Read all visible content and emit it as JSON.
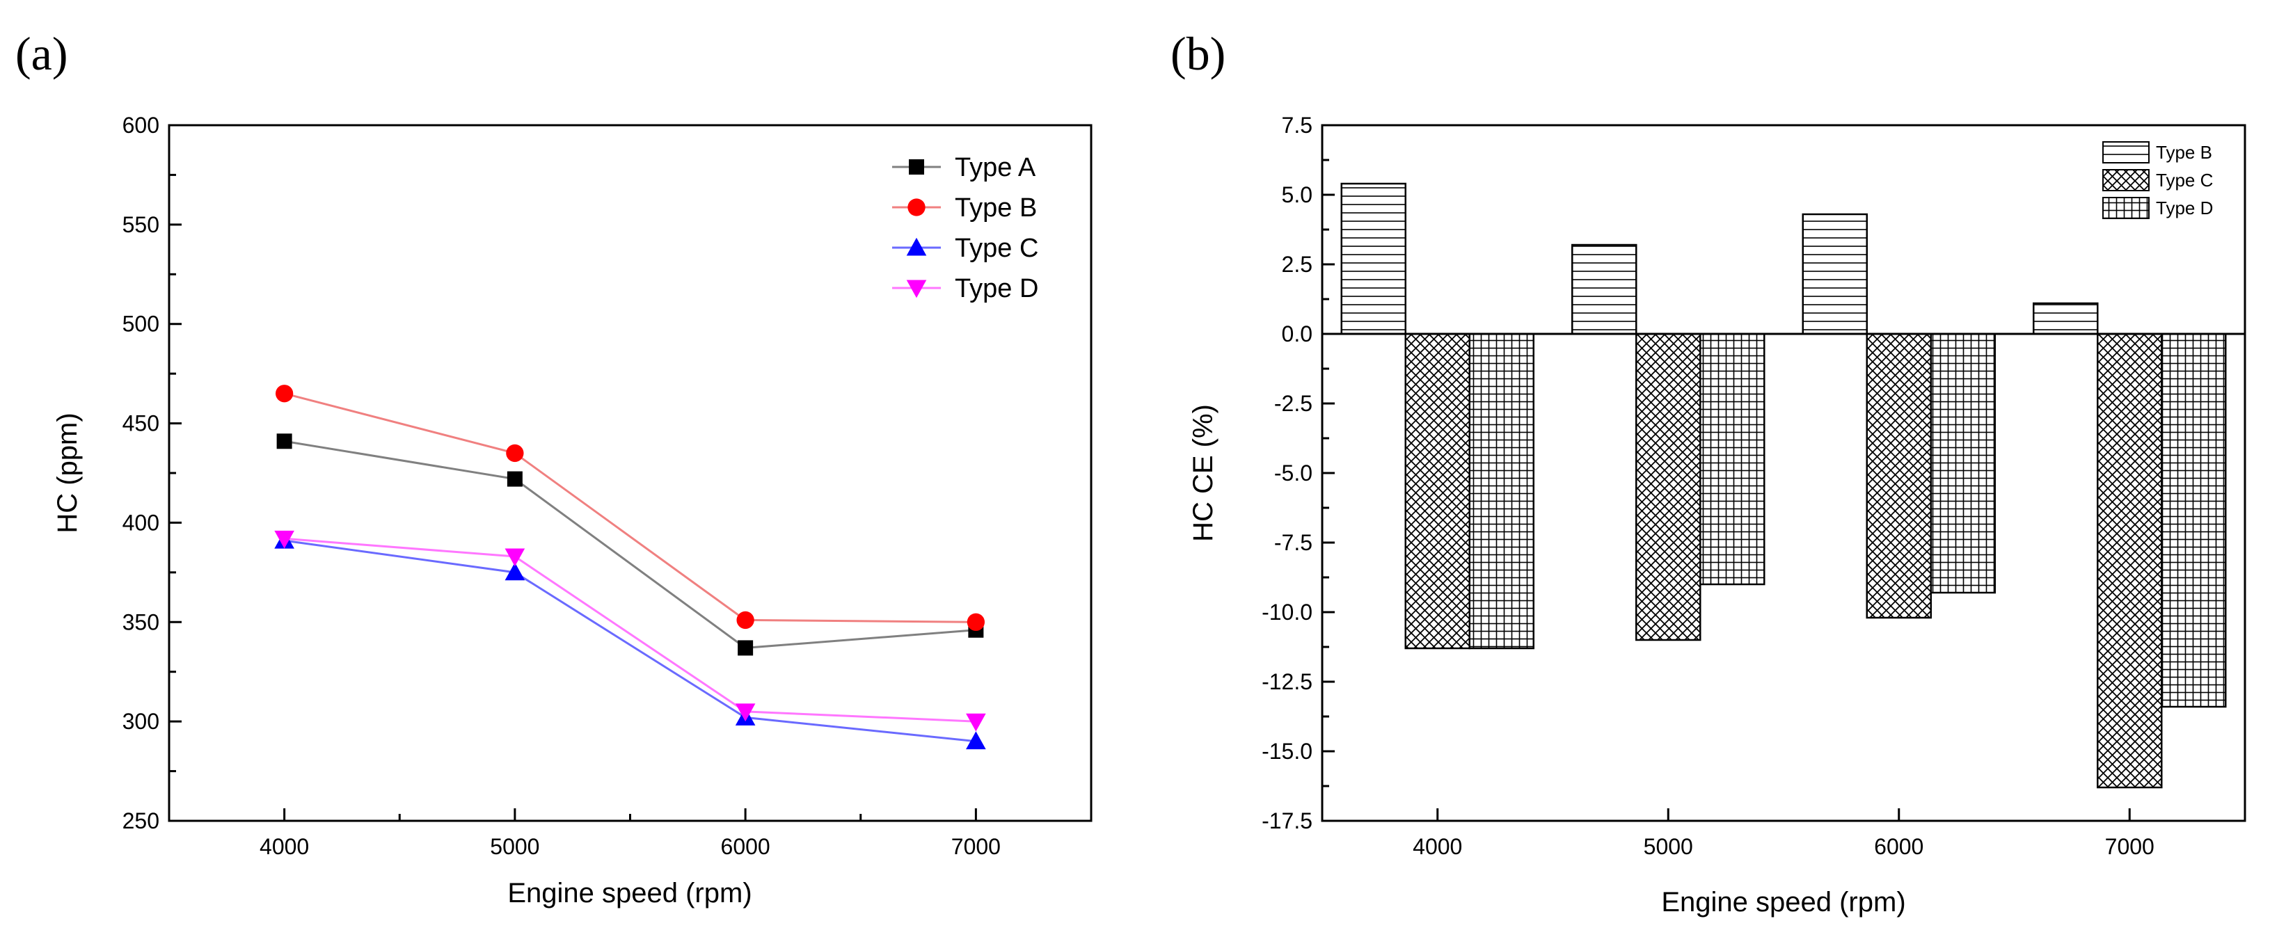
{
  "chart_data": [
    {
      "panel": "(a)",
      "type": "line",
      "xlabel": "Engine speed (rpm)",
      "ylabel": "HC (ppm)",
      "x": [
        4000,
        5000,
        6000,
        7000
      ],
      "xlim": [
        3500,
        7500
      ],
      "ylim": [
        250,
        600
      ],
      "yticks": [
        250,
        300,
        350,
        400,
        450,
        500,
        550,
        600
      ],
      "legend_position": "top-right",
      "grid": false,
      "series": [
        {
          "name": "Type A",
          "values": [
            441,
            422,
            337,
            346
          ],
          "color": "#000000",
          "line_color": "#808080",
          "marker": "square"
        },
        {
          "name": "Type B",
          "values": [
            465,
            435,
            351,
            350
          ],
          "color": "#ff0000",
          "line_color": "#f08080",
          "marker": "circle"
        },
        {
          "name": "Type C",
          "values": [
            391,
            375,
            302,
            290
          ],
          "color": "#0000ff",
          "line_color": "#6a6aff",
          "marker": "triangle-up"
        },
        {
          "name": "Type D",
          "values": [
            392,
            383,
            305,
            300
          ],
          "color": "#ff00ff",
          "line_color": "#ff77ff",
          "marker": "triangle-down"
        }
      ]
    },
    {
      "panel": "(b)",
      "type": "bar",
      "xlabel": "Engine speed (rpm)",
      "ylabel": "HC CE (%)",
      "categories": [
        "4000",
        "5000",
        "6000",
        "7000"
      ],
      "ylim": [
        -17.5,
        7.5
      ],
      "yticks": [
        "7.5",
        "5.0",
        "2.5",
        "0.0",
        "-2.5",
        "-5.0",
        "-7.5",
        "-10.0",
        "-12.5",
        "-15.0",
        "-17.5"
      ],
      "legend_position": "top-right",
      "grid": false,
      "series": [
        {
          "name": "Type B",
          "values": [
            5.4,
            3.2,
            4.3,
            1.1
          ],
          "pattern": "horizontal-lines"
        },
        {
          "name": "Type C",
          "values": [
            -11.3,
            -11.0,
            -10.2,
            -16.3
          ],
          "pattern": "diagonal-cross"
        },
        {
          "name": "Type D",
          "values": [
            -11.3,
            -9.0,
            -9.3,
            -13.4
          ],
          "pattern": "grid"
        }
      ]
    }
  ]
}
